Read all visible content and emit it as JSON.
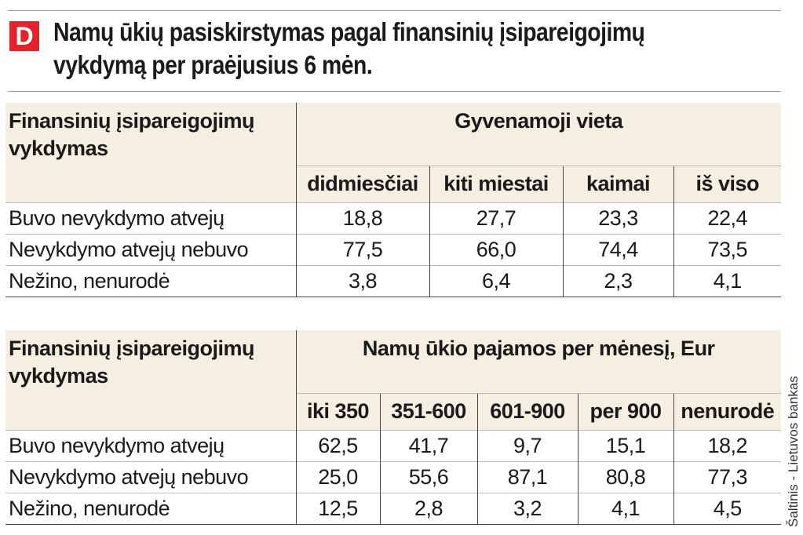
{
  "header": {
    "logo_letter": "D",
    "title_line1": "Namų ūkių pasiskirstymas pagal finansinių įsipareigojimų",
    "title_line2": "vykdymą per praėjusius 6 mėn."
  },
  "table1": {
    "main_header": "Finansinių įsipareigojimų vykdymas",
    "group_header": "Gyvenamoji vieta",
    "columns": [
      "didmiesčiai",
      "kiti miestai",
      "kaimai",
      "iš viso"
    ],
    "rows": [
      {
        "label": "Buvo nevykdymo atvejų",
        "values": [
          "18,8",
          "27,7",
          "23,3",
          "22,4"
        ]
      },
      {
        "label": "Nevykdymo atvejų nebuvo",
        "values": [
          "77,5",
          "66,0",
          "74,4",
          "73,5"
        ]
      },
      {
        "label": "Nežino, nenurodė",
        "values": [
          "3,8",
          "6,4",
          "2,3",
          "4,1"
        ]
      }
    ]
  },
  "table2": {
    "main_header": "Finansinių įsipareigojimų vykdymas",
    "group_header": "Namų ūkio pajamos per mėnesį, Eur",
    "columns": [
      "iki 350",
      "351-600",
      "601-900",
      "per 900",
      "nenurodė"
    ],
    "rows": [
      {
        "label": "Buvo nevykdymo atvejų",
        "values": [
          "62,5",
          "41,7",
          "9,7",
          "15,1",
          "18,2"
        ]
      },
      {
        "label": "Nevykdymo atvejų nebuvo",
        "values": [
          "25,0",
          "55,6",
          "87,1",
          "80,8",
          "77,3"
        ]
      },
      {
        "label": "Nežino, nenurodė",
        "values": [
          "12,5",
          "2,8",
          "3,2",
          "4,1",
          "4,5"
        ]
      }
    ]
  },
  "source": "Šaltinis - Lietuvos bankas",
  "colors": {
    "brand_red": "#e3222b",
    "header_bg": "#f5efe2"
  }
}
